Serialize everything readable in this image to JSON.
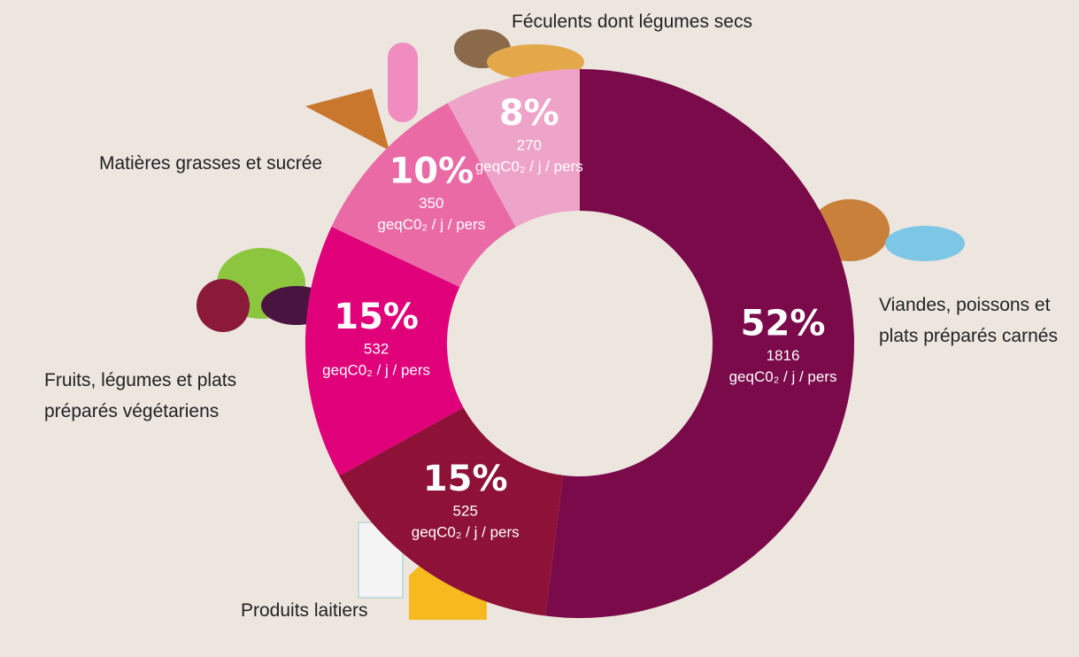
{
  "chart_data": {
    "type": "donut",
    "categories": [
      "Viandes, poissons et\nplats préparés carnés",
      "Produits laitiers",
      "Fruits, légumes et plats\npréparés végétariens",
      "Matières grasses et sucrée",
      "Féculents dont légumes secs"
    ],
    "values": [
      52,
      15,
      15,
      10,
      8
    ],
    "value_labels": [
      "52%",
      "15%",
      "15%",
      "10%",
      "8%"
    ],
    "amounts": [
      1816,
      525,
      532,
      350,
      270
    ],
    "unit": "geqC0₂ / j / pers",
    "colors": [
      "#7a0a4a",
      "#8e1238",
      "#e0007a",
      "#e96aa5",
      "#eea3c8"
    ]
  }
}
